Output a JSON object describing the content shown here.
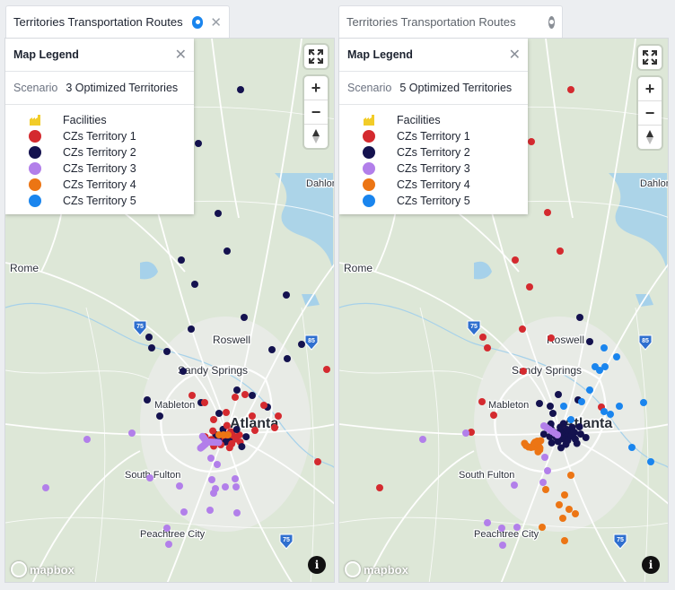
{
  "colors": {
    "territory_1": "#d42a2f",
    "territory_2": "#14124f",
    "territory_3": "#b27fea",
    "territory_4": "#ec7514",
    "territory_5": "#1a85ee",
    "facility": "#f2cc28",
    "tab_pin_active": "#1a85ee",
    "tab_pin_inactive": "#8a8f96"
  },
  "panels": [
    {
      "tab_title": "Territories Transportation Routes",
      "active": true,
      "legend": {
        "title": "Map Legend",
        "scenario_label": "Scenario",
        "scenario_value": "3 Optimized Territories",
        "items": [
          {
            "label": "Facilities",
            "icon": "facility-icon"
          },
          {
            "label": "CZs Territory 1",
            "color": "#d42a2f"
          },
          {
            "label": "CZs Territory 2",
            "color": "#14124f"
          },
          {
            "label": "CZs Territory 3",
            "color": "#b27fea"
          },
          {
            "label": "CZs Territory 4",
            "color": "#ec7514"
          },
          {
            "label": "CZs Territory 5",
            "color": "#1a85ee"
          }
        ]
      },
      "place_labels": [
        "Rome",
        "Roswell",
        "Sandy Springs",
        "Mableton",
        "Atlanta",
        "South Fulton",
        "Peachtree City",
        "Dahlon"
      ],
      "highway_shields": [
        "75",
        "85",
        "75"
      ],
      "attribution": "mapbox"
    },
    {
      "tab_title": "Territories Transportation Routes",
      "active": false,
      "legend": {
        "title": "Map Legend",
        "scenario_label": "Scenario",
        "scenario_value": "5 Optimized Territories",
        "items": [
          {
            "label": "Facilities",
            "icon": "facility-icon"
          },
          {
            "label": "CZs Territory 1",
            "color": "#d42a2f"
          },
          {
            "label": "CZs Territory 2",
            "color": "#14124f"
          },
          {
            "label": "CZs Territory 3",
            "color": "#b27fea"
          },
          {
            "label": "CZs Territory 4",
            "color": "#ec7514"
          },
          {
            "label": "CZs Territory 5",
            "color": "#1a85ee"
          }
        ]
      },
      "place_labels": [
        "Rome",
        "Roswell",
        "Sandy Springs",
        "Mableton",
        "Atlanta",
        "South Fulton",
        "Peachtree City",
        "Dahlon"
      ],
      "highway_shields": [
        "75",
        "85",
        "75"
      ],
      "attribution": "mapbox"
    }
  ]
}
